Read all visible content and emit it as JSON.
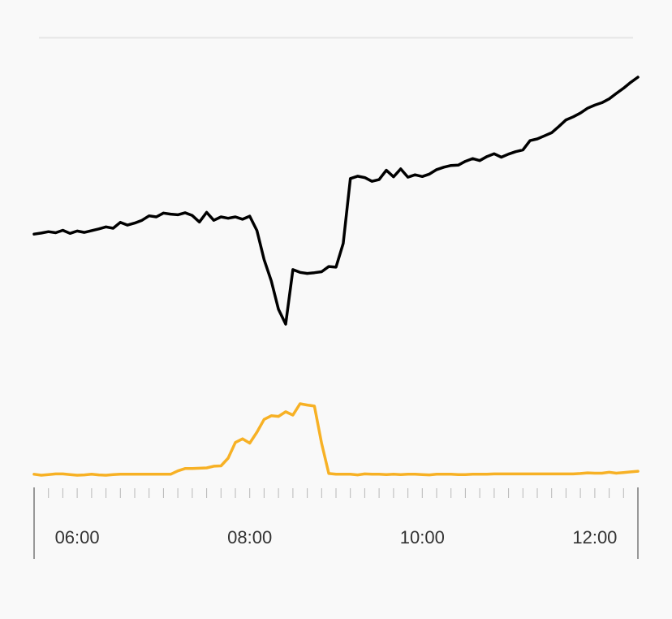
{
  "chart_data": {
    "type": "line",
    "title": "",
    "xlabel": "",
    "ylabel": "",
    "grid": false,
    "x_tick_labels": [
      "06:00",
      "08:00",
      "10:00",
      "12:00"
    ],
    "x_range": [
      "05:30",
      "12:30"
    ],
    "x": [
      "05:30",
      "05:35",
      "05:40",
      "05:45",
      "05:50",
      "05:55",
      "06:00",
      "06:05",
      "06:10",
      "06:15",
      "06:20",
      "06:25",
      "06:30",
      "06:35",
      "06:40",
      "06:45",
      "06:50",
      "06:55",
      "07:00",
      "07:05",
      "07:10",
      "07:15",
      "07:20",
      "07:25",
      "07:30",
      "07:35",
      "07:40",
      "07:45",
      "07:50",
      "07:55",
      "08:00",
      "08:05",
      "08:10",
      "08:15",
      "08:20",
      "08:25",
      "08:30",
      "08:35",
      "08:40",
      "08:45",
      "08:50",
      "08:55",
      "09:00",
      "09:05",
      "09:10",
      "09:15",
      "09:20",
      "09:25",
      "09:30",
      "09:35",
      "09:40",
      "09:45",
      "09:50",
      "09:55",
      "10:00",
      "10:05",
      "10:10",
      "10:15",
      "10:20",
      "10:25",
      "10:30",
      "10:35",
      "10:40",
      "10:45",
      "10:50",
      "10:55",
      "11:00",
      "11:05",
      "11:10",
      "11:15",
      "11:20",
      "11:25",
      "11:30",
      "11:35",
      "11:40",
      "11:45",
      "11:50",
      "11:55",
      "12:00",
      "12:05",
      "12:10",
      "12:15",
      "12:20",
      "12:25",
      "12:30"
    ],
    "series": [
      {
        "values": [
          59.2,
          59.5,
          59.9,
          59.6,
          60.3,
          59.4,
          60.1,
          59.7,
          60.2,
          60.7,
          61.3,
          60.9,
          62.6,
          61.8,
          62.4,
          63.2,
          64.5,
          64.2,
          65.3,
          65.0,
          64.8,
          65.4,
          64.6,
          62.7,
          65.5,
          63.2,
          64.2,
          63.8,
          64.2,
          63.5,
          64.4,
          60.2,
          51.8,
          45.6,
          37.4,
          33.1,
          48.9,
          48.1,
          47.8,
          48.0,
          48.3,
          49.8,
          49.6,
          56.5,
          75.3,
          76.0,
          75.6,
          74.5,
          75.0,
          77.7,
          75.8,
          78.1,
          75.7,
          76.4,
          75.9,
          76.6,
          77.9,
          78.6,
          79.1,
          79.2,
          80.3,
          81.1,
          80.5,
          81.7,
          82.5,
          81.5,
          82.4,
          83.1,
          83.6,
          86.3,
          86.8,
          87.7,
          88.6,
          90.4,
          92.3,
          93.2,
          94.3,
          95.7,
          96.6,
          97.3,
          98.4,
          100.0,
          101.5,
          103.2,
          104.7
        ],
        "color": "#000000"
      },
      {
        "values": [
          0.3,
          0.0,
          0.2,
          0.4,
          0.4,
          0.2,
          0.0,
          0.1,
          0.3,
          0.1,
          0.0,
          0.2,
          0.3,
          0.3,
          0.3,
          0.3,
          0.3,
          0.3,
          0.3,
          0.3,
          1.3,
          2.0,
          2.0,
          2.1,
          2.2,
          2.7,
          2.8,
          5.1,
          9.8,
          10.9,
          9.6,
          12.9,
          16.7,
          17.8,
          17.6,
          19.0,
          18.0,
          21.4,
          21.0,
          20.7,
          9.5,
          0.5,
          0.3,
          0.3,
          0.3,
          0.1,
          0.4,
          0.3,
          0.3,
          0.2,
          0.3,
          0.2,
          0.3,
          0.3,
          0.2,
          0.1,
          0.3,
          0.3,
          0.3,
          0.2,
          0.2,
          0.3,
          0.3,
          0.3,
          0.4,
          0.4,
          0.4,
          0.4,
          0.4,
          0.4,
          0.4,
          0.4,
          0.4,
          0.4,
          0.4,
          0.4,
          0.5,
          0.7,
          0.6,
          0.6,
          0.9,
          0.6,
          0.8,
          1.0,
          1.2
        ],
        "color": "#f7b125"
      }
    ]
  }
}
